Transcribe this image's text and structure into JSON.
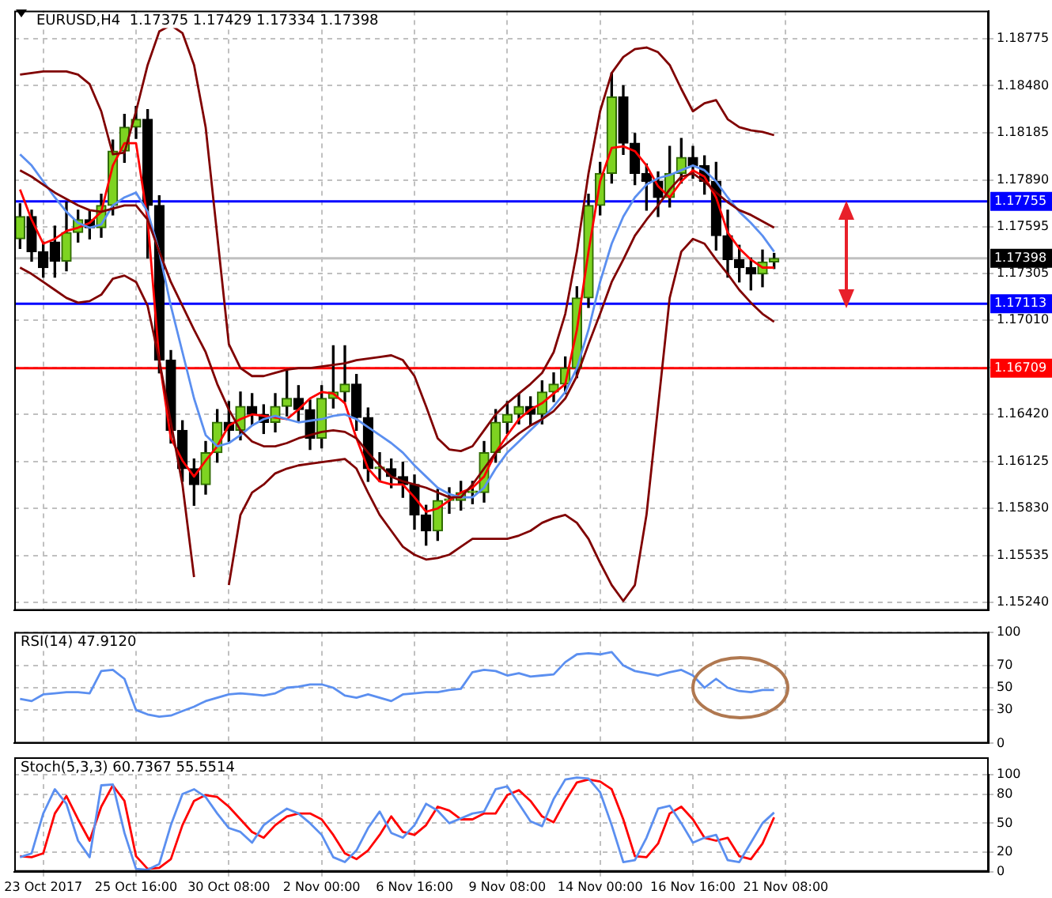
{
  "chart_data": [
    {
      "type": "candlestick",
      "title": "EURUSD,H4  1.17375 1.17429 1.17334 1.17398",
      "categories": [
        null,
        null,
        null,
        null,
        null,
        null,
        null,
        null,
        null,
        null,
        null,
        null,
        null,
        null,
        null,
        null,
        null,
        null,
        null,
        null,
        null,
        null,
        null,
        null,
        null,
        null,
        null,
        null,
        null,
        null,
        null,
        null,
        null,
        null,
        null,
        null,
        null,
        null,
        null,
        null,
        null,
        null,
        null,
        null,
        null,
        null,
        null,
        null,
        null,
        null,
        null,
        null,
        null,
        null,
        null,
        null,
        null,
        null,
        null,
        null,
        null,
        null,
        null,
        null,
        null,
        null,
        null,
        null,
        null,
        null,
        null,
        null,
        null,
        null,
        null,
        null,
        null,
        null,
        null,
        null,
        null,
        null,
        null,
        null
      ],
      "ohlc": [
        [
          1.1752,
          1.1774,
          1.1746,
          1.1766
        ],
        [
          1.1766,
          1.177,
          1.1738,
          1.1744
        ],
        [
          1.1744,
          1.175,
          1.1728,
          1.1734
        ],
        [
          1.175,
          1.176,
          1.1728,
          1.1738
        ],
        [
          1.1738,
          1.1775,
          1.1732,
          1.1756
        ],
        [
          1.1756,
          1.177,
          1.175,
          1.1764
        ],
        [
          1.1764,
          1.177,
          1.1752,
          1.1759
        ],
        [
          1.1759,
          1.178,
          1.1753,
          1.1773
        ],
        [
          1.1773,
          1.1814,
          1.1767,
          1.1807
        ],
        [
          1.1807,
          1.183,
          1.18,
          1.1822
        ],
        [
          1.1822,
          1.1835,
          1.1815,
          1.1827
        ],
        [
          1.1827,
          1.1833,
          1.174,
          1.1773
        ],
        [
          1.1773,
          1.1779,
          1.1668,
          1.1676
        ],
        [
          1.1676,
          1.1682,
          1.1624,
          1.1632
        ],
        [
          1.1632,
          1.1638,
          1.16,
          1.1608
        ],
        [
          1.1608,
          1.1614,
          1.1585,
          1.1598
        ],
        [
          1.1598,
          1.1625,
          1.1592,
          1.1618
        ],
        [
          1.1618,
          1.1645,
          1.1612,
          1.1637
        ],
        [
          1.1637,
          1.165,
          1.1625,
          1.1632
        ],
        [
          1.1632,
          1.1656,
          1.1626,
          1.1647
        ],
        [
          1.1647,
          1.1655,
          1.1635,
          1.1642
        ],
        [
          1.1642,
          1.1648,
          1.163,
          1.1637
        ],
        [
          1.1637,
          1.1655,
          1.1631,
          1.1647
        ],
        [
          1.1647,
          1.167,
          1.1641,
          1.1652
        ],
        [
          1.1652,
          1.166,
          1.1638,
          1.1645
        ],
        [
          1.1645,
          1.1651,
          1.162,
          1.1627
        ],
        [
          1.1627,
          1.166,
          1.1621,
          1.1652
        ],
        [
          1.1652,
          1.1685,
          1.1646,
          1.1656
        ],
        [
          1.1656,
          1.1685,
          1.165,
          1.1661
        ],
        [
          1.1661,
          1.1667,
          1.1632,
          1.164
        ],
        [
          1.164,
          1.1646,
          1.16,
          1.1608
        ],
        [
          1.1608,
          1.1618,
          1.16,
          1.1608
        ],
        [
          1.1608,
          1.1614,
          1.1596,
          1.1603
        ],
        [
          1.1603,
          1.1612,
          1.159,
          1.1598
        ],
        [
          1.1598,
          1.1604,
          1.157,
          1.1579
        ],
        [
          1.1579,
          1.1585,
          1.156,
          1.1569
        ],
        [
          1.1569,
          1.1595,
          1.1563,
          1.1588
        ],
        [
          1.1588,
          1.1596,
          1.158,
          1.1588
        ],
        [
          1.1588,
          1.16,
          1.1582,
          1.1593
        ],
        [
          1.1593,
          1.16,
          1.1586,
          1.1593
        ],
        [
          1.1593,
          1.1625,
          1.1587,
          1.1618
        ],
        [
          1.1618,
          1.1645,
          1.1612,
          1.1637
        ],
        [
          1.1637,
          1.165,
          1.163,
          1.1642
        ],
        [
          1.1642,
          1.1655,
          1.1636,
          1.1647
        ],
        [
          1.1647,
          1.1653,
          1.1635,
          1.1642
        ],
        [
          1.1642,
          1.1663,
          1.1636,
          1.1656
        ],
        [
          1.1656,
          1.1668,
          1.165,
          1.1661
        ],
        [
          1.1661,
          1.1678,
          1.1655,
          1.1671
        ],
        [
          1.1671,
          1.1722,
          1.1665,
          1.1715
        ],
        [
          1.1715,
          1.178,
          1.1709,
          1.1773
        ],
        [
          1.1773,
          1.18,
          1.1767,
          1.1793
        ],
        [
          1.1793,
          1.1856,
          1.1787,
          1.1841
        ],
        [
          1.1841,
          1.1848,
          1.1805,
          1.1812
        ],
        [
          1.1812,
          1.1818,
          1.1786,
          1.1793
        ],
        [
          1.1793,
          1.1799,
          1.177,
          1.1788
        ],
        [
          1.1788,
          1.1794,
          1.1766,
          1.1778
        ],
        [
          1.1778,
          1.181,
          1.1772,
          1.1793
        ],
        [
          1.1793,
          1.1815,
          1.1787,
          1.1803
        ],
        [
          1.1803,
          1.181,
          1.179,
          1.1798
        ],
        [
          1.1798,
          1.1804,
          1.178,
          1.1788
        ],
        [
          1.1788,
          1.18,
          1.1745,
          1.1754
        ],
        [
          1.1754,
          1.177,
          1.1728,
          1.1739
        ],
        [
          1.1739,
          1.1748,
          1.1725,
          1.1734
        ],
        [
          1.1734,
          1.174,
          1.172,
          1.173
        ],
        [
          1.173,
          1.1745,
          1.1722,
          1.17375
        ],
        [
          1.17375,
          1.17429,
          1.17334,
          1.17398
        ],
        null,
        null,
        null,
        null,
        null,
        null,
        null,
        null,
        null,
        null,
        null,
        null,
        null,
        null,
        null,
        null,
        null,
        null
      ],
      "series": [
        {
          "type": "line",
          "color": "#800000",
          "values": [
            1.1855,
            1.1856,
            1.1857,
            1.1857,
            1.1857,
            1.1855,
            1.1849,
            1.1832,
            1.1805,
            1.1806,
            1.1832,
            1.1861,
            1.1882,
            1.1886,
            1.1881,
            1.1861,
            1.1822,
            1.1754,
            1.1686,
            1.1671,
            1.1666,
            1.1666,
            1.1668,
            1.167,
            1.1671,
            1.1671,
            1.1672,
            1.1673,
            1.1674,
            1.1676,
            1.1677,
            1.1678,
            1.1679,
            1.1676,
            1.1666,
            1.1647,
            1.1627,
            1.162,
            1.1619,
            1.1622,
            1.1632,
            1.1642,
            1.1649,
            1.1655,
            1.1661,
            1.1668,
            1.1681,
            1.1705,
            1.1744,
            1.1793,
            1.1832,
            1.1856,
            1.1866,
            1.1871,
            1.1872,
            1.1869,
            1.1861,
            1.1846,
            1.1832,
            1.1837,
            1.1839,
            1.1827,
            1.1822,
            1.182,
            1.1819,
            1.1817,
            null,
            null,
            null,
            null,
            null,
            null,
            null,
            null,
            null,
            null,
            null,
            null,
            null,
            null,
            null,
            null,
            null,
            null
          ]
        },
        {
          "type": "line",
          "color": "#800000",
          "values": [
            1.1795,
            1.1791,
            1.1786,
            1.1781,
            1.1777,
            1.1773,
            1.177,
            1.1769,
            1.1771,
            1.1773,
            1.1773,
            1.1764,
            1.1744,
            1.1725,
            1.171,
            1.1695,
            1.1681,
            1.1661,
            1.1645,
            1.1632,
            1.1625,
            1.1622,
            1.1622,
            1.1624,
            1.1627,
            1.1629,
            1.1631,
            1.1632,
            1.1631,
            1.1627,
            1.1618,
            1.161,
            1.1603,
            1.16,
            1.1598,
            1.1596,
            1.1593,
            1.159,
            1.159,
            1.1598,
            1.1608,
            1.1618,
            1.1624,
            1.163,
            1.1635,
            1.1639,
            1.1644,
            1.1652,
            1.1666,
            1.1686,
            1.1705,
            1.1725,
            1.1739,
            1.1754,
            1.1764,
            1.1773,
            1.1783,
            1.1791,
            1.1793,
            1.1788,
            1.1781,
            1.1775,
            1.177,
            1.1767,
            1.1763,
            1.1759,
            null,
            null,
            null,
            null,
            null,
            null,
            null,
            null,
            null,
            null,
            null,
            null,
            null,
            null,
            null,
            null,
            null,
            null
          ]
        },
        {
          "type": "line",
          "color": "#800000",
          "values": [
            1.1734,
            1.173,
            1.1725,
            1.172,
            1.1715,
            1.1712,
            1.1713,
            1.1717,
            1.1727,
            1.1729,
            1.1725,
            1.171,
            1.1676,
            1.1637,
            1.1598,
            1.154,
            null,
            null,
            1.1535,
            1.1579,
            1.1593,
            1.1598,
            1.1605,
            1.1608,
            1.161,
            1.1611,
            1.1612,
            1.1613,
            1.1614,
            1.1608,
            1.1593,
            1.1579,
            1.1569,
            1.1559,
            1.1554,
            1.1551,
            1.1552,
            1.1554,
            1.1559,
            1.1564,
            1.1564,
            1.1564,
            1.1564,
            1.1566,
            1.1569,
            1.1574,
            1.1577,
            1.1579,
            1.1574,
            1.1564,
            1.1549,
            1.1535,
            1.1525,
            1.1535,
            1.1579,
            1.1647,
            1.1715,
            1.1744,
            1.1752,
            1.1749,
            1.1739,
            1.173,
            1.172,
            1.1712,
            1.1705,
            1.17,
            null,
            null,
            null,
            null,
            null,
            null,
            null,
            null,
            null,
            null,
            null,
            null,
            null,
            null,
            null,
            null,
            null,
            null
          ]
        },
        {
          "type": "line",
          "color": "#5b8ff0",
          "values": [
            1.1805,
            1.1798,
            1.1788,
            1.1778,
            1.1769,
            1.1762,
            1.1759,
            1.1761,
            1.1773,
            1.1778,
            1.1781,
            1.1769,
            1.1744,
            1.171,
            1.1681,
            1.1652,
            1.1629,
            1.1622,
            1.1624,
            1.1629,
            1.1635,
            1.1639,
            1.1641,
            1.1639,
            1.1637,
            1.1638,
            1.1639,
            1.1641,
            1.1642,
            1.1639,
            1.1634,
            1.1629,
            1.1624,
            1.1618,
            1.161,
            1.1603,
            1.1596,
            1.1592,
            1.159,
            1.159,
            1.1596,
            1.1608,
            1.1618,
            1.1625,
            1.1632,
            1.1639,
            1.1647,
            1.1656,
            1.1671,
            1.1695,
            1.1725,
            1.1749,
            1.1766,
            1.1778,
            1.1786,
            1.179,
            1.1792,
            1.1795,
            1.1798,
            1.1795,
            1.1788,
            1.1778,
            1.1769,
            1.1762,
            1.1754,
            1.1744,
            null,
            null,
            null,
            null,
            null,
            null,
            null,
            null,
            null,
            null,
            null,
            null,
            null,
            null,
            null,
            null,
            null,
            null
          ]
        },
        {
          "type": "line",
          "color": "#ff0000",
          "values": [
            1.1783,
            1.1764,
            1.1749,
            1.1752,
            1.1757,
            1.1759,
            1.1762,
            1.1769,
            1.1798,
            1.1812,
            1.1812,
            1.1764,
            1.1676,
            1.1627,
            1.1613,
            1.1603,
            1.1613,
            1.1622,
            1.1635,
            1.1639,
            1.1642,
            1.1641,
            1.164,
            1.1639,
            1.1645,
            1.1652,
            1.1656,
            1.1655,
            1.1649,
            1.1627,
            1.1608,
            1.16,
            1.1598,
            1.1598,
            1.159,
            1.1581,
            1.1583,
            1.1588,
            1.1593,
            1.1596,
            1.1603,
            1.1618,
            1.1629,
            1.1639,
            1.1645,
            1.1649,
            1.1655,
            1.1661,
            1.1695,
            1.1744,
            1.1788,
            1.1809,
            1.181,
            1.1807,
            1.1798,
            1.1785,
            1.1778,
            1.1788,
            1.1795,
            1.1791,
            1.1778,
            1.1756,
            1.1746,
            1.1739,
            1.1734,
            1.1734,
            null,
            null,
            null,
            null,
            null,
            null,
            null,
            null,
            null,
            null,
            null,
            null,
            null,
            null,
            null,
            null,
            null,
            null
          ]
        }
      ],
      "ylim": [
        1.1519,
        1.1895
      ],
      "yticks": [
        1.18775,
        {
          "value": 1.1848,
          "label": "1.18480"
        },
        1.18185,
        {
          "value": 1.1789,
          "label": "1.17890"
        },
        1.17595,
        1.17305,
        {
          "value": 1.1701,
          "label": "1.17010"
        },
        {
          "value": 1.16715,
          "label": null
        },
        {
          "value": 1.1642,
          "label": "1.16420"
        },
        1.16125,
        {
          "value": 1.1583,
          "label": "1.15830"
        },
        1.15535,
        {
          "value": 1.1524,
          "label": "1.15240"
        }
      ],
      "ref_lines": [
        {
          "axis": "y",
          "value": 1.17398,
          "label": "1.17398",
          "color": "#c0c0c0"
        },
        {
          "axis": "y",
          "value": 1.17755,
          "label": "1.17755",
          "color": "#0000ff"
        },
        {
          "axis": "y",
          "value": 1.17113,
          "label": "1.17113",
          "color": "#0000ff"
        },
        {
          "axis": "y",
          "value": 1.16709,
          "label": "1.16709",
          "color": "#ff0000"
        }
      ],
      "grid": true,
      "tick_labels": "y"
    },
    {
      "type": "line",
      "title": "RSI(14) 47.9120",
      "categories": [
        null,
        null,
        null,
        null,
        null,
        null,
        null,
        null,
        null,
        null,
        null,
        null,
        null,
        null,
        null,
        null,
        null,
        null,
        null,
        null,
        null,
        null,
        null,
        null,
        null,
        null,
        null,
        null,
        null,
        null,
        null,
        null,
        null,
        null,
        null,
        null,
        null,
        null,
        null,
        null,
        null,
        null,
        null,
        null,
        null,
        null,
        null,
        null,
        null,
        null,
        null,
        null,
        null,
        null,
        null,
        null,
        null,
        null,
        null,
        null,
        null,
        null,
        null,
        null,
        null,
        null,
        null,
        null,
        null,
        null,
        null,
        null,
        null,
        null,
        null,
        null,
        null,
        null,
        null,
        null,
        null,
        null,
        null,
        null
      ],
      "series": [
        {
          "color": "#5b8ff0",
          "values": [
            40,
            38,
            44,
            45,
            46,
            46,
            45,
            65,
            66,
            58,
            30,
            26,
            24,
            25,
            29,
            33,
            38,
            41,
            44,
            45,
            44,
            43,
            45,
            50,
            51,
            53,
            53,
            50,
            43,
            41,
            44,
            41,
            38,
            44,
            45,
            46,
            46,
            48,
            49,
            64,
            66,
            65,
            61,
            63,
            60,
            61,
            62,
            73,
            80,
            81,
            80,
            82,
            70,
            65,
            63,
            61,
            64,
            66,
            61,
            50,
            58,
            50,
            47,
            46,
            48,
            48,
            null,
            null,
            null,
            null,
            null,
            null,
            null,
            null,
            null,
            null,
            null,
            null,
            null,
            null,
            null,
            null,
            null,
            null
          ]
        }
      ],
      "ylim": [
        0,
        100
      ],
      "yticks": [
        100,
        70,
        50,
        30,
        0
      ],
      "grid": true,
      "tick_labels": "y"
    },
    {
      "type": "line",
      "title": "Stoch(5,3,3) 60.7367 55.5514",
      "categories": [
        null,
        null,
        "23 Oct 2017",
        null,
        null,
        null,
        null,
        null,
        null,
        null,
        "25 Oct 16:00",
        null,
        null,
        null,
        null,
        null,
        null,
        null,
        "30 Oct 08:00",
        null,
        null,
        null,
        null,
        null,
        null,
        null,
        "2 Nov 00:00",
        null,
        null,
        null,
        null,
        null,
        null,
        null,
        "6 Nov 16:00",
        null,
        null,
        null,
        null,
        null,
        null,
        null,
        "9 Nov 08:00",
        null,
        null,
        null,
        null,
        null,
        null,
        null,
        "14 Nov 00:00",
        null,
        null,
        null,
        null,
        null,
        null,
        null,
        "16 Nov 16:00",
        null,
        null,
        null,
        null,
        null,
        null,
        null,
        "21 Nov 08:00",
        null,
        null,
        null,
        null,
        null,
        null,
        null,
        null,
        null,
        null,
        null,
        null,
        null,
        null,
        null,
        null,
        null
      ],
      "series": [
        {
          "color": "#5b8ff0",
          "values": [
            15,
            19,
            60,
            85,
            70,
            32,
            15,
            89,
            90,
            40,
            3,
            2,
            8,
            48,
            80,
            85,
            77,
            60,
            45,
            41,
            30,
            48,
            57,
            65,
            60,
            50,
            38,
            15,
            10,
            22,
            45,
            62,
            40,
            35,
            48,
            70,
            63,
            50,
            55,
            60,
            62,
            85,
            88,
            70,
            52,
            47,
            75,
            95,
            97,
            96,
            82,
            48,
            10,
            12,
            35,
            65,
            68,
            50,
            30,
            35,
            38,
            12,
            10,
            30,
            50,
            61,
            null,
            null,
            null,
            null,
            null,
            null,
            null,
            null,
            null,
            null,
            null,
            null,
            null,
            null,
            null,
            null,
            null,
            null
          ]
        },
        {
          "color": "#ff0000",
          "values": [
            16,
            15,
            19,
            60,
            78,
            54,
            32,
            67,
            89,
            73,
            16,
            3,
            4,
            13,
            48,
            73,
            79,
            77,
            67,
            54,
            41,
            35,
            48,
            57,
            60,
            60,
            54,
            38,
            19,
            13,
            22,
            38,
            57,
            41,
            38,
            48,
            67,
            63,
            54,
            54,
            60,
            60,
            79,
            84,
            73,
            57,
            51,
            73,
            92,
            95,
            93,
            85,
            54,
            16,
            15,
            29,
            60,
            67,
            54,
            35,
            32,
            35,
            16,
            13,
            29,
            56,
            null,
            null,
            null,
            null,
            null,
            null,
            null,
            null,
            null,
            null,
            null,
            null,
            null,
            null,
            null,
            null,
            null,
            null
          ]
        }
      ],
      "ylim": [
        0,
        100
      ],
      "yticks": [
        100,
        80,
        50,
        20,
        0
      ],
      "grid": true
    }
  ]
}
